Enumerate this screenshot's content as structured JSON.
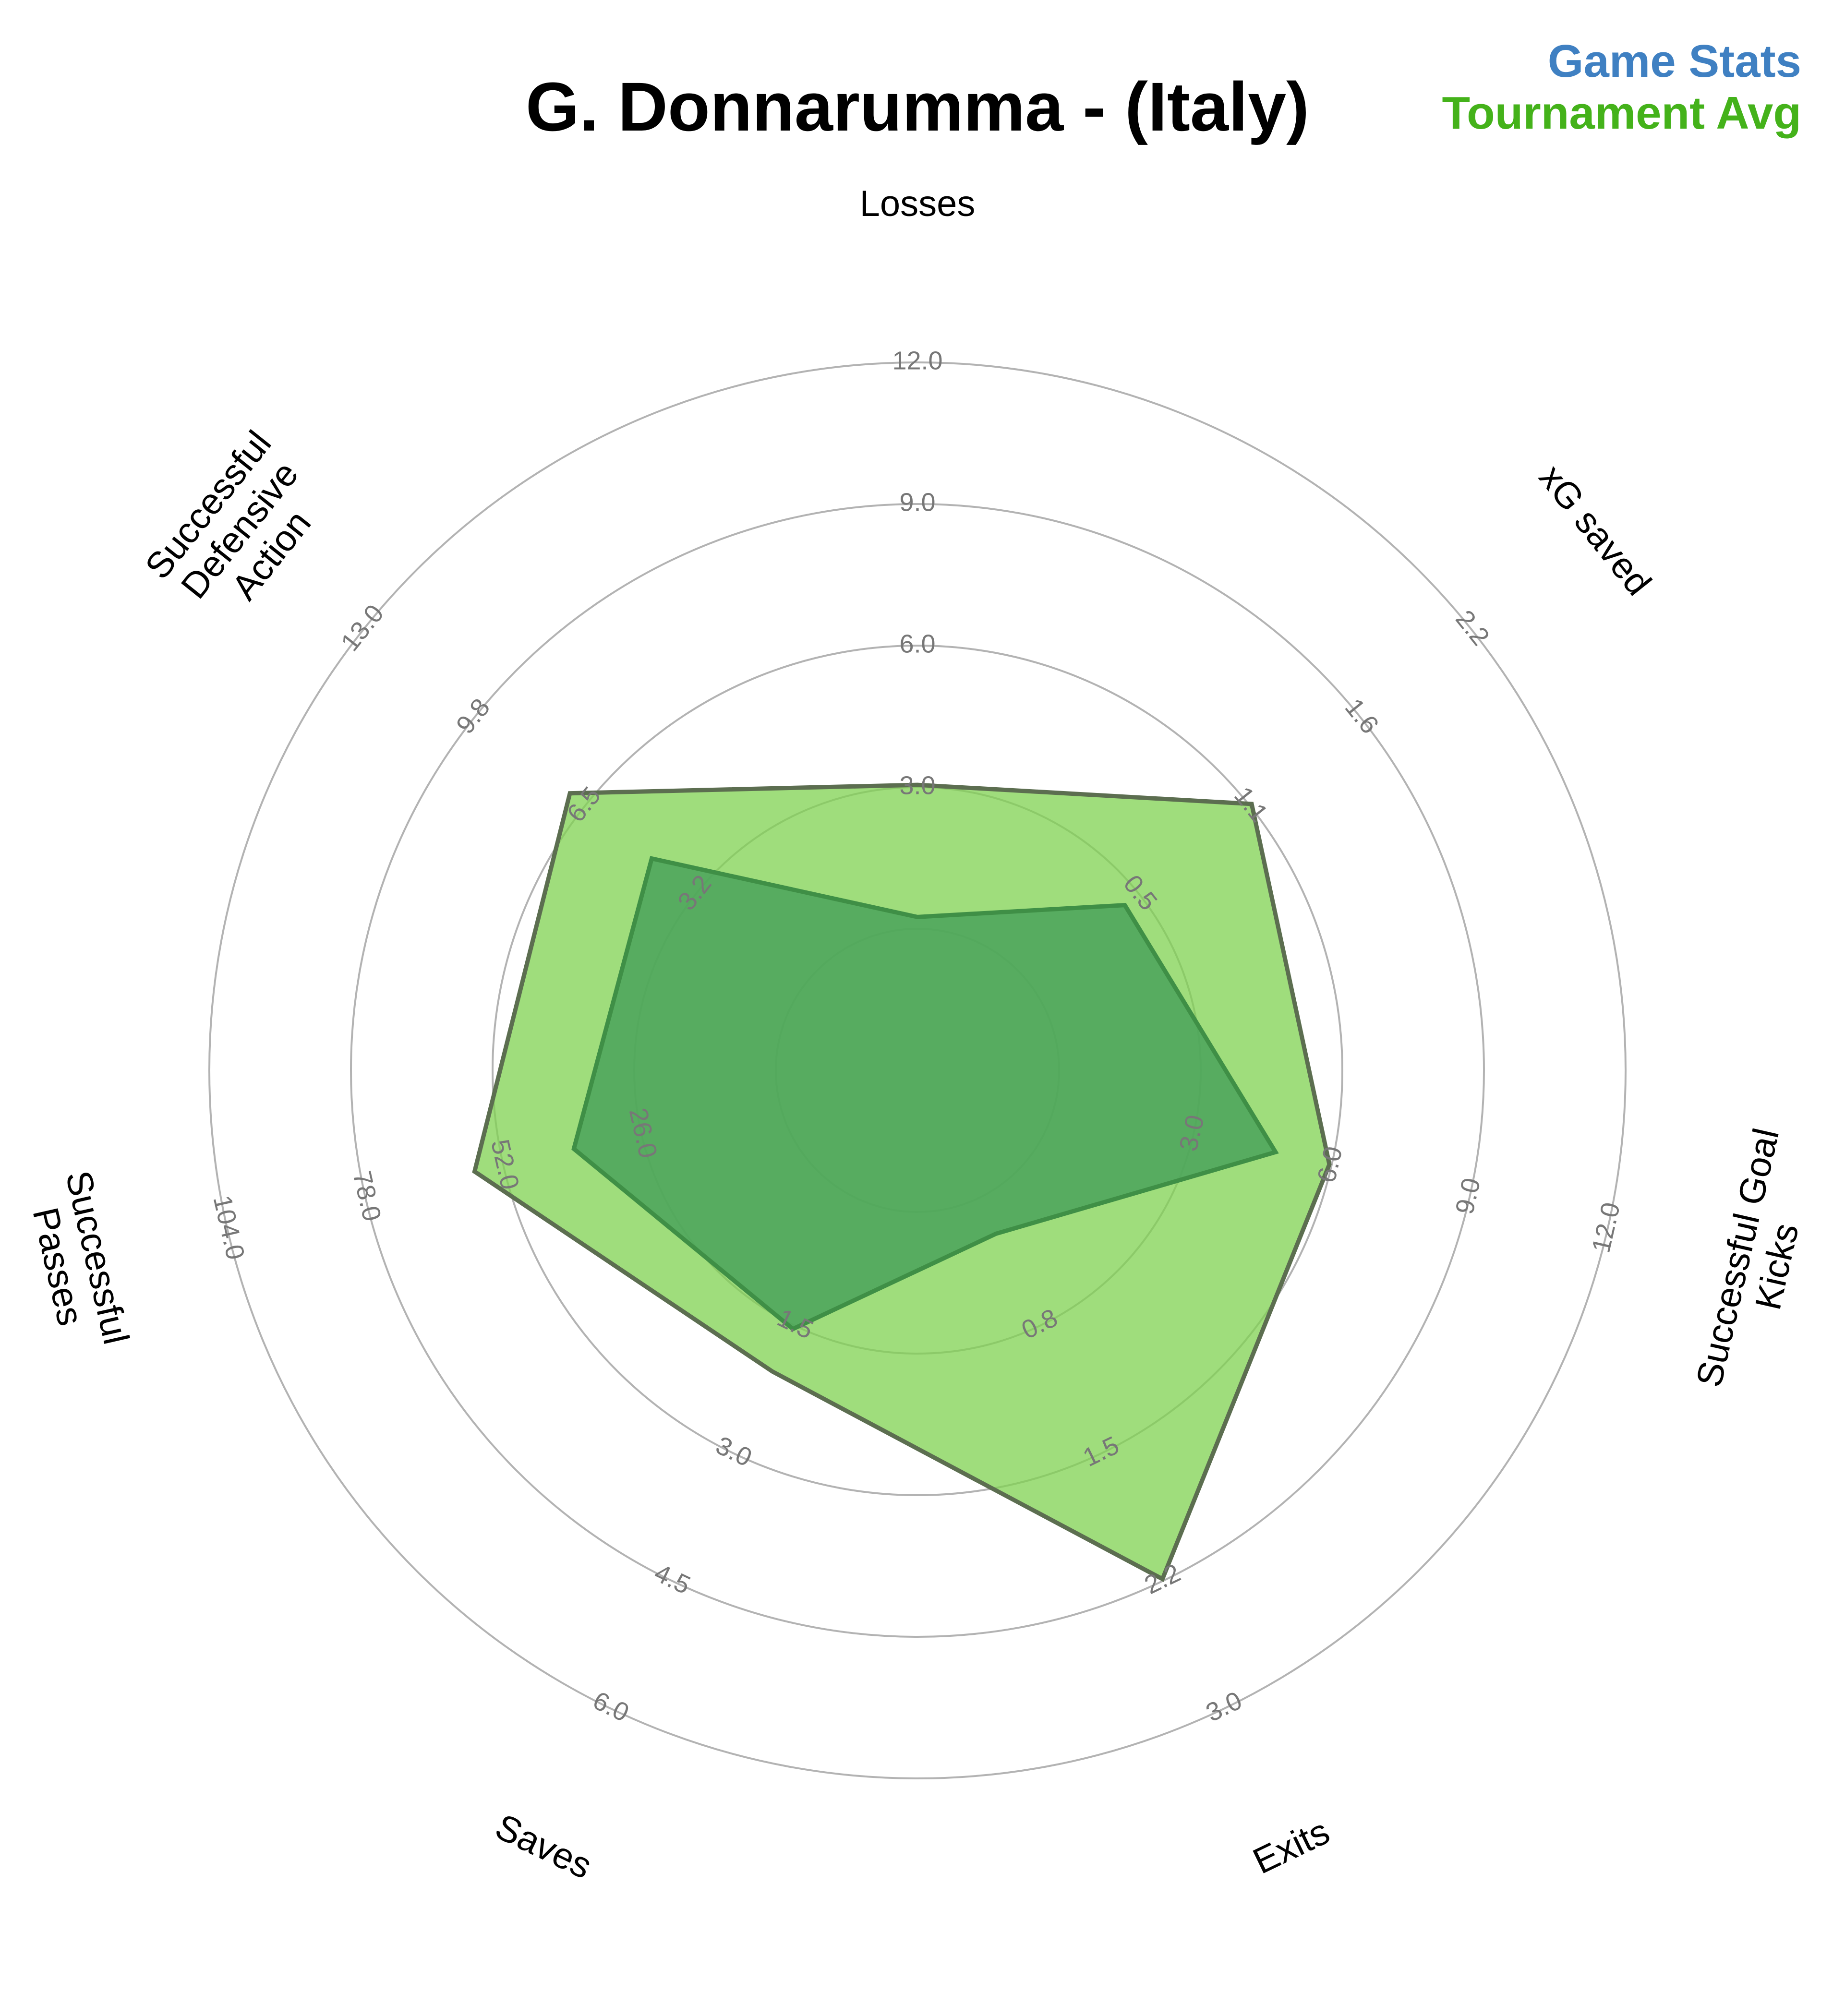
{
  "chart_data": {
    "type": "radar",
    "title": "G. Donnarumma - (Italy)",
    "legend": {
      "placement": "top-right",
      "entries": [
        {
          "label": "Game Stats",
          "color": "#3f80c2"
        },
        {
          "label": "Tournament Avg",
          "color": "#44b21a"
        }
      ]
    },
    "axes": [
      {
        "name": "Losses",
        "label_lines": [
          "Losses"
        ],
        "max": 12.0,
        "ticks": [
          "3.0",
          "6.0",
          "9.0",
          "12.0"
        ]
      },
      {
        "name": "xG saved",
        "label_lines": [
          "xG saved"
        ],
        "max": 2.2,
        "ticks": [
          "0.5",
          "1.1",
          "1.6",
          "2.2"
        ]
      },
      {
        "name": "Successful Goal Kicks",
        "label_lines": [
          "Successful Goal",
          "Kicks"
        ],
        "max": 12.0,
        "ticks": [
          "3.0",
          "6.0",
          "9.0",
          "12.0"
        ]
      },
      {
        "name": "Exits",
        "label_lines": [
          "Exits"
        ],
        "max": 3.0,
        "ticks": [
          "0.8",
          "1.5",
          "2.2",
          "3.0"
        ]
      },
      {
        "name": "Saves",
        "label_lines": [
          "Saves"
        ],
        "max": 6.0,
        "ticks": [
          "1.5",
          "3.0",
          "4.5",
          "6.0"
        ]
      },
      {
        "name": "Successful Passes",
        "label_lines": [
          "Successful",
          "Passes"
        ],
        "max": 104.0,
        "ticks": [
          "26.0",
          "52.0",
          "78.0",
          "104.0"
        ]
      },
      {
        "name": "Successful Defensive Action",
        "label_lines": [
          "Successful",
          "Defensive",
          "Action"
        ],
        "max": 13.0,
        "ticks": [
          "3.2",
          "6.5",
          "9.8",
          "13.0"
        ]
      }
    ],
    "series": [
      {
        "name": "Tournament Avg",
        "fill": "#7fd150",
        "stroke": "#5c6e50",
        "values": [
          3.05,
          1.11,
          5.95,
          2.24,
          2.04,
          57.4,
          6.95
        ]
      },
      {
        "name": "Game Stats",
        "fill": "#4aa35c",
        "stroke": "#3f8f46",
        "values": [
          0.25,
          0.48,
          4.78,
          0.21,
          1.54,
          38.7,
          4.55
        ]
      }
    ]
  }
}
